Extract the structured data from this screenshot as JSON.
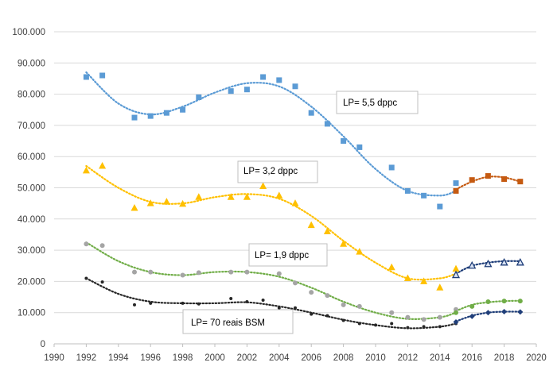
{
  "chart_data": {
    "type": "scatter",
    "xlim": [
      1990,
      2020
    ],
    "ylim": [
      0,
      100000
    ],
    "x_ticks": [
      "1990",
      "1992",
      "1994",
      "1996",
      "1998",
      "2000",
      "2002",
      "2004",
      "2006",
      "2008",
      "2010",
      "2012",
      "2014",
      "2016",
      "2018",
      "2020"
    ],
    "y_ticks": [
      "0",
      "10.000",
      "20.000",
      "30.000",
      "40.000",
      "50.000",
      "60.000",
      "70.000",
      "80.000",
      "90.000",
      "100.000"
    ],
    "grid": "horizontal",
    "legend": "none",
    "colors": {
      "blue": "#5b9bd5",
      "yellow": "#ffc000",
      "green": "#70ad47",
      "gray": "#a5a5a5",
      "dark": "#262626",
      "navy": "#1f3e79",
      "brown": "#c55a11",
      "gridline": "#d9d9d9"
    },
    "annotations": [
      {
        "text": "LP= 5,5 dppc"
      },
      {
        "text": "LP= 3,2 dppc"
      },
      {
        "text": "LP= 1,9 dppc"
      },
      {
        "text": "LP= 70 reais BSM"
      }
    ],
    "series": [
      {
        "marker": "square",
        "color": "#5b9bd5",
        "x": [
          1992,
          1993,
          1995,
          1996,
          1997,
          1998,
          1999,
          2001,
          2002,
          2003,
          2004,
          2005,
          2006,
          2007,
          2008,
          2009,
          2011,
          2012,
          2013,
          2014,
          2015
        ],
        "y": [
          85500,
          86000,
          72500,
          73000,
          74000,
          75000,
          79000,
          81000,
          81500,
          85500,
          84500,
          82500,
          74000,
          70500,
          65000,
          63000,
          56500,
          49000,
          47500,
          44000,
          51500
        ],
        "trend": [
          [
            1992,
            87000
          ],
          [
            1994,
            77000
          ],
          [
            1996,
            73500
          ],
          [
            1998,
            76000
          ],
          [
            2000,
            80500
          ],
          [
            2002,
            83500
          ],
          [
            2004,
            82500
          ],
          [
            2006,
            76000
          ],
          [
            2008,
            66500
          ],
          [
            2010,
            56000
          ],
          [
            2012,
            49000
          ],
          [
            2014,
            47500
          ],
          [
            2015,
            49000
          ]
        ]
      },
      {
        "marker": "square",
        "color": "#c55a11",
        "x": [
          2015,
          2016,
          2017,
          2018,
          2019
        ],
        "y": [
          49000,
          52500,
          53800,
          52800,
          52000
        ],
        "trend": [
          [
            2015,
            49500
          ],
          [
            2016,
            52000
          ],
          [
            2017,
            53500
          ],
          [
            2018,
            53300
          ],
          [
            2019,
            52000
          ]
        ]
      },
      {
        "marker": "triangle",
        "color": "#ffc000",
        "x": [
          1992,
          1993,
          1995,
          1996,
          1997,
          1998,
          1999,
          2001,
          2002,
          2003,
          2004,
          2005,
          2006,
          2007,
          2008,
          2009,
          2011,
          2012,
          2013,
          2014,
          2015
        ],
        "y": [
          55500,
          57000,
          43500,
          45000,
          45500,
          44800,
          47000,
          47000,
          47000,
          50500,
          47500,
          45000,
          38000,
          36000,
          32000,
          29500,
          24500,
          21000,
          20000,
          18000,
          24000
        ],
        "trend": [
          [
            1992,
            57000
          ],
          [
            1994,
            50000
          ],
          [
            1996,
            45500
          ],
          [
            1998,
            45000
          ],
          [
            2000,
            47000
          ],
          [
            2002,
            48000
          ],
          [
            2004,
            46500
          ],
          [
            2006,
            41000
          ],
          [
            2008,
            33000
          ],
          [
            2010,
            26000
          ],
          [
            2012,
            21000
          ],
          [
            2014,
            21000
          ],
          [
            2015,
            22500
          ]
        ]
      },
      {
        "marker": "triangle-open",
        "color": "#1f3e79",
        "x": [
          2015,
          2016,
          2017,
          2018,
          2019
        ],
        "y": [
          22000,
          25000,
          25500,
          26000,
          26000
        ],
        "trend": [
          [
            2015,
            22500
          ],
          [
            2016,
            25000
          ],
          [
            2017,
            26000
          ],
          [
            2018,
            26500
          ],
          [
            2019,
            26500
          ]
        ]
      },
      {
        "marker": "circle",
        "color": "#a5a5a5",
        "x": [
          1992,
          1993,
          1995,
          1996,
          1998,
          1999,
          2001,
          2002,
          2004,
          2005,
          2006,
          2007,
          2008,
          2009,
          2011,
          2012,
          2013,
          2014,
          2015
        ],
        "y": [
          32000,
          31500,
          23000,
          23000,
          22000,
          22800,
          23000,
          23000,
          22500,
          19500,
          16500,
          15500,
          12500,
          12000,
          10000,
          8500,
          7800,
          8500,
          11000
        ],
        "trend": null
      },
      {
        "marker": "none",
        "color": "#70ad47",
        "x": [],
        "y": [],
        "trend": [
          [
            1992,
            32500
          ],
          [
            1994,
            26500
          ],
          [
            1996,
            23000
          ],
          [
            1998,
            22000
          ],
          [
            2000,
            23000
          ],
          [
            2002,
            23000
          ],
          [
            2004,
            21500
          ],
          [
            2006,
            18000
          ],
          [
            2008,
            13500
          ],
          [
            2010,
            10000
          ],
          [
            2012,
            8000
          ],
          [
            2014,
            8500
          ],
          [
            2015,
            10000
          ]
        ]
      },
      {
        "marker": "circle",
        "color": "#70ad47",
        "x": [
          2015,
          2016,
          2017,
          2018,
          2019
        ],
        "y": [
          10000,
          12000,
          13500,
          13700,
          13700
        ],
        "trend": [
          [
            2015,
            10500
          ],
          [
            2016,
            12500
          ],
          [
            2017,
            13300
          ],
          [
            2018,
            13700
          ],
          [
            2019,
            13800
          ]
        ]
      },
      {
        "marker": "circle-small",
        "color": "#262626",
        "x": [
          1992,
          1993,
          1995,
          1996,
          1998,
          1999,
          2001,
          2002,
          2003,
          2004,
          2005,
          2006,
          2007,
          2008,
          2009,
          2010,
          2011,
          2012,
          2013,
          2014,
          2015
        ],
        "y": [
          21000,
          19800,
          12500,
          13000,
          13000,
          12800,
          14500,
          13500,
          14000,
          11500,
          11500,
          9500,
          9000,
          7500,
          6500,
          6000,
          6500,
          5200,
          5500,
          5500,
          6500
        ],
        "trend": [
          [
            1992,
            21000
          ],
          [
            1994,
            16000
          ],
          [
            1996,
            13500
          ],
          [
            1998,
            13000
          ],
          [
            2000,
            13000
          ],
          [
            2002,
            13300
          ],
          [
            2004,
            12000
          ],
          [
            2006,
            10000
          ],
          [
            2008,
            7700
          ],
          [
            2010,
            6000
          ],
          [
            2012,
            5000
          ],
          [
            2014,
            5500
          ],
          [
            2015,
            6500
          ]
        ]
      },
      {
        "marker": "diamond",
        "color": "#1f3e79",
        "x": [
          2015,
          2016,
          2017,
          2018,
          2019
        ],
        "y": [
          7000,
          8800,
          10000,
          10300,
          10200
        ],
        "trend": [
          [
            2015,
            7200
          ],
          [
            2016,
            9000
          ],
          [
            2017,
            10000
          ],
          [
            2018,
            10300
          ],
          [
            2019,
            10300
          ]
        ]
      }
    ]
  }
}
